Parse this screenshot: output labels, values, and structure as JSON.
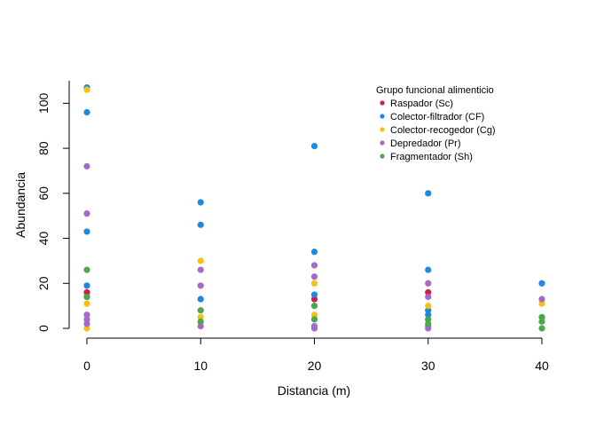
{
  "chart_data": {
    "type": "scatter",
    "xlabel": "Distancia (m)",
    "ylabel": "Abundancia",
    "xlim": [
      0,
      40
    ],
    "ylim": [
      0,
      110
    ],
    "x_ticks": [
      0,
      10,
      20,
      30,
      40
    ],
    "y_ticks": [
      0,
      20,
      40,
      60,
      80,
      100
    ],
    "grid": false,
    "legend": {
      "title": "Grupo funcional alimenticio",
      "placement": "top-right"
    },
    "series": [
      {
        "name": "Raspador (Sc)",
        "color": "#D6194B",
        "points": [
          {
            "x": 0,
            "y": 16
          },
          {
            "x": 0,
            "y": 14
          },
          {
            "x": 20,
            "y": 13
          },
          {
            "x": 30,
            "y": 16
          }
        ]
      },
      {
        "name": "Colector-filtrador (CF)",
        "color": "#1E88E5",
        "points": [
          {
            "x": 0,
            "y": 107
          },
          {
            "x": 0,
            "y": 96
          },
          {
            "x": 0,
            "y": 43
          },
          {
            "x": 0,
            "y": 19
          },
          {
            "x": 10,
            "y": 56
          },
          {
            "x": 10,
            "y": 46
          },
          {
            "x": 10,
            "y": 13
          },
          {
            "x": 20,
            "y": 81
          },
          {
            "x": 20,
            "y": 34
          },
          {
            "x": 20,
            "y": 15
          },
          {
            "x": 30,
            "y": 60
          },
          {
            "x": 30,
            "y": 26
          },
          {
            "x": 30,
            "y": 8
          },
          {
            "x": 30,
            "y": 6
          },
          {
            "x": 40,
            "y": 20
          }
        ]
      },
      {
        "name": "Colector-recogedor (Cg)",
        "color": "#F5C20F",
        "points": [
          {
            "x": 0,
            "y": 106
          },
          {
            "x": 0,
            "y": 11
          },
          {
            "x": 0,
            "y": 0
          },
          {
            "x": 10,
            "y": 30
          },
          {
            "x": 10,
            "y": 5
          },
          {
            "x": 20,
            "y": 20
          },
          {
            "x": 20,
            "y": 6
          },
          {
            "x": 30,
            "y": 10
          },
          {
            "x": 40,
            "y": 11
          }
        ]
      },
      {
        "name": "Depredador (Pr)",
        "color": "#A668C9",
        "points": [
          {
            "x": 0,
            "y": 72
          },
          {
            "x": 0,
            "y": 51
          },
          {
            "x": 0,
            "y": 6
          },
          {
            "x": 0,
            "y": 4
          },
          {
            "x": 0,
            "y": 2
          },
          {
            "x": 10,
            "y": 26
          },
          {
            "x": 10,
            "y": 19
          },
          {
            "x": 10,
            "y": 1
          },
          {
            "x": 20,
            "y": 28
          },
          {
            "x": 20,
            "y": 23
          },
          {
            "x": 20,
            "y": 1
          },
          {
            "x": 20,
            "y": 0
          },
          {
            "x": 30,
            "y": 20
          },
          {
            "x": 30,
            "y": 14
          },
          {
            "x": 30,
            "y": 1
          },
          {
            "x": 30,
            "y": 0
          },
          {
            "x": 40,
            "y": 13
          }
        ]
      },
      {
        "name": "Fragmentador (Sh)",
        "color": "#4CA64C",
        "points": [
          {
            "x": 0,
            "y": 26
          },
          {
            "x": 0,
            "y": 14
          },
          {
            "x": 10,
            "y": 8
          },
          {
            "x": 10,
            "y": 3
          },
          {
            "x": 20,
            "y": 10
          },
          {
            "x": 20,
            "y": 4
          },
          {
            "x": 30,
            "y": 4
          },
          {
            "x": 30,
            "y": 2
          },
          {
            "x": 40,
            "y": 5
          },
          {
            "x": 40,
            "y": 3
          },
          {
            "x": 40,
            "y": 0
          }
        ]
      }
    ]
  }
}
